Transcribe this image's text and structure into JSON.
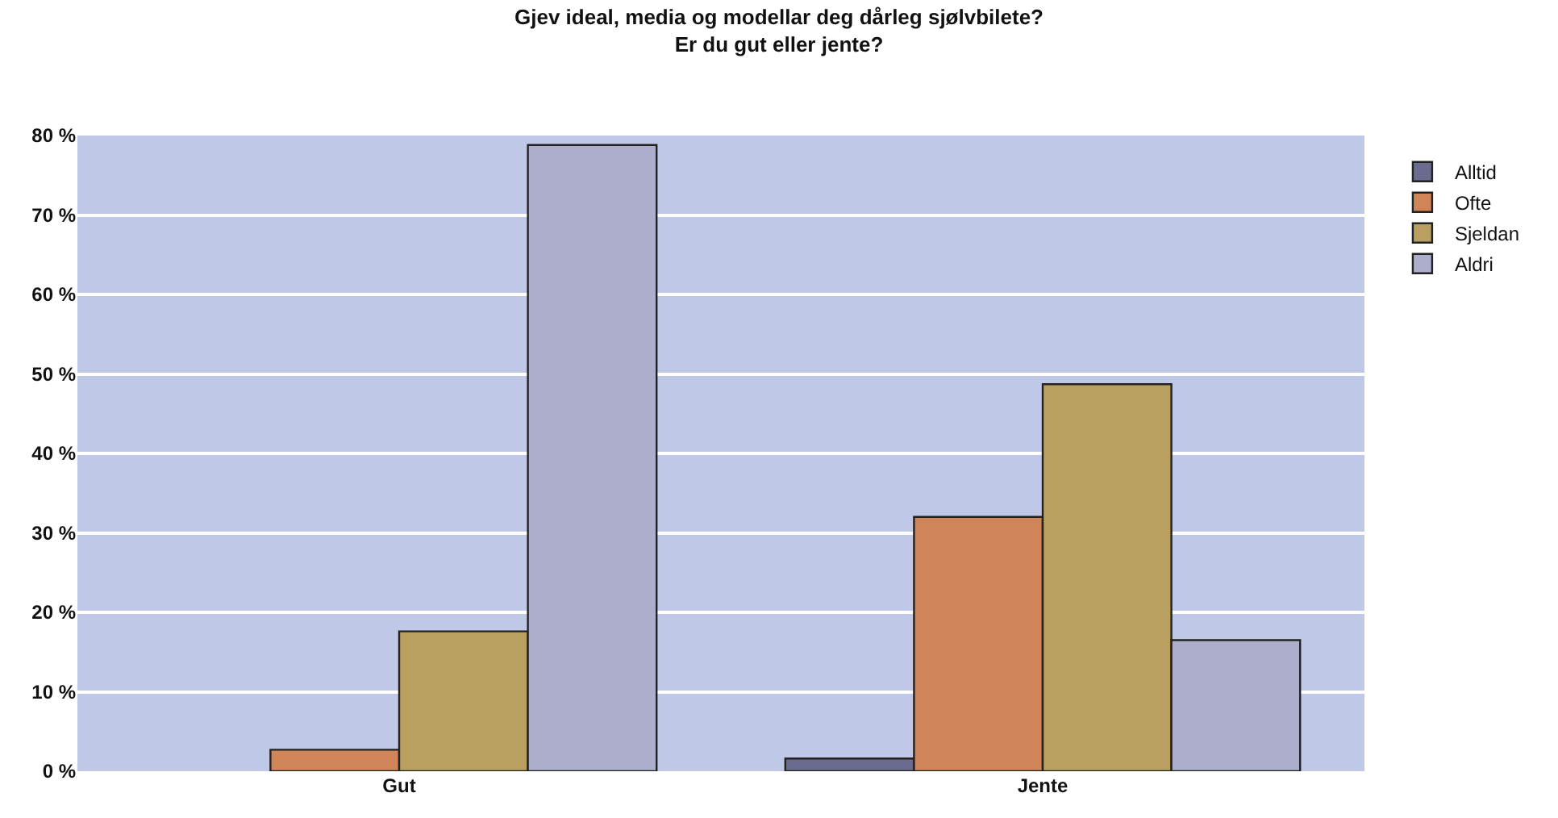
{
  "chart_data": {
    "type": "bar",
    "title": "Gjev ideal, media og modellar deg dårleg sjølvbilete?",
    "subtitle": "Er du gut eller jente?",
    "categories": [
      "Gut",
      "Jente"
    ],
    "series": [
      {
        "name": "Alltid",
        "color": "#6b6b8f",
        "values": [
          null,
          1.6
        ]
      },
      {
        "name": "Ofte",
        "color": "#cf8557",
        "values": [
          2.7,
          32
        ]
      },
      {
        "name": "Sjeldan",
        "color": "#b9a060",
        "values": [
          17.6,
          48.7
        ]
      },
      {
        "name": "Aldri",
        "color": "#adadcc",
        "values": [
          78.8,
          16.5
        ]
      }
    ],
    "ylim": [
      0,
      80
    ],
    "yticks": [
      {
        "value": 0,
        "label": "0 %"
      },
      {
        "value": 10,
        "label": "10 %"
      },
      {
        "value": 20,
        "label": "20 %"
      },
      {
        "value": 30,
        "label": "30 %"
      },
      {
        "value": 40,
        "label": "40 %"
      },
      {
        "value": 50,
        "label": "50 %"
      },
      {
        "value": 60,
        "label": "60 %"
      },
      {
        "value": 70,
        "label": "70 %"
      },
      {
        "value": 80,
        "label": "80 %"
      }
    ],
    "grid": "y",
    "legend": "top right"
  }
}
